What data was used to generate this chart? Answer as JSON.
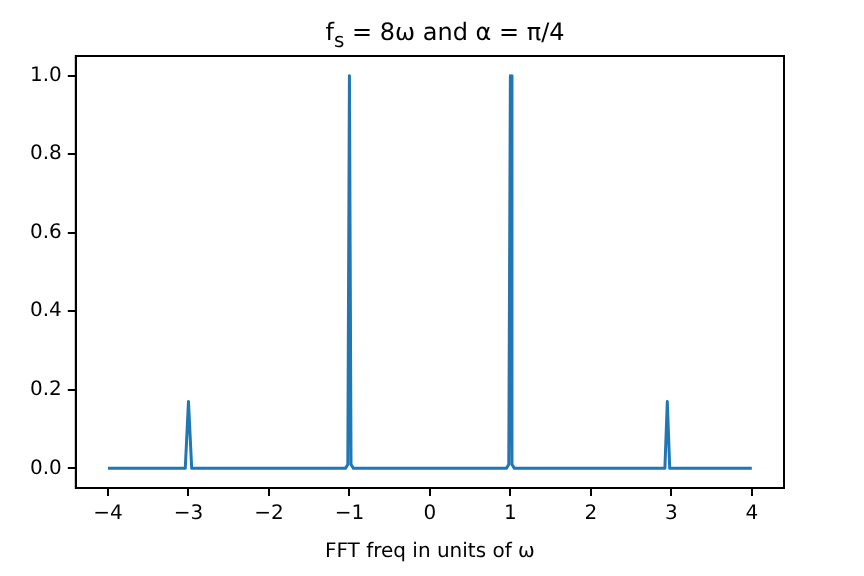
{
  "chart_data": {
    "type": "line",
    "title": "f$_{s}$ = 8ω and α = π/4",
    "xlabel": "FFT freq in units of ω",
    "series": [
      {
        "color": "#1f77b4",
        "x": [
          -4,
          -3.04,
          -3.0,
          -2.96,
          -1.05,
          -1.02,
          -1.0,
          -0.98,
          -0.95,
          0.95,
          0.98,
          1.0,
          1.02,
          1.05,
          2.92,
          2.95,
          2.98,
          4
        ],
        "values": [
          0,
          0,
          0.17,
          0,
          0,
          0.01,
          1.0,
          0.01,
          0,
          0,
          0.01,
          1.0,
          0.01,
          0,
          0,
          0.17,
          0,
          0
        ]
      }
    ],
    "xlim": [
      -4.4,
      4.4
    ],
    "ylim": [
      -0.05,
      1.05
    ],
    "xticks": [
      -4,
      -3,
      -2,
      -1,
      0,
      1,
      2,
      3,
      4
    ],
    "yticks": [
      {
        "value": 0,
        "label": "0.0"
      },
      0.2,
      0.4,
      0.6,
      0.8,
      {
        "value": 1,
        "label": "1.0"
      }
    ],
    "grid": false,
    "legend": false,
    "marker": "none",
    "line_style": "solid"
  }
}
